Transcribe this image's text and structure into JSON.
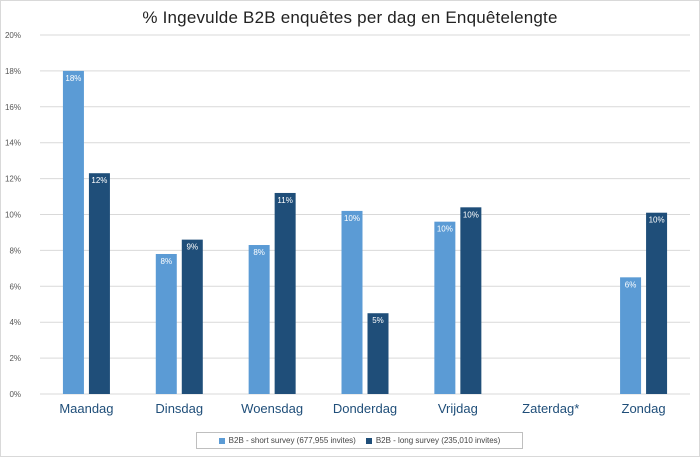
{
  "chart_data": {
    "type": "bar",
    "title": "% Ingevulde B2B enquêtes per dag en Enquêtelengte",
    "categories": [
      "Maandag",
      "Dinsdag",
      "Woensdag",
      "Donderdag",
      "Vrijdag",
      "Zaterdag*",
      "Zondag"
    ],
    "series": [
      {
        "name": "B2B - short survey (677,955 invites)",
        "color": "#5b9bd5",
        "values": [
          18.0,
          7.8,
          8.3,
          10.2,
          9.6,
          null,
          6.5
        ],
        "labels": [
          "18%",
          "8%",
          "8%",
          "10%",
          "10%",
          "",
          "6%"
        ]
      },
      {
        "name": "B2B - long survey (235,010 invites)",
        "color": "#1f4e79",
        "values": [
          12.3,
          8.6,
          11.2,
          4.5,
          10.4,
          null,
          10.1
        ],
        "labels": [
          "12%",
          "9%",
          "11%",
          "5%",
          "10%",
          "",
          "10%"
        ]
      }
    ],
    "ylim": [
      0,
      20
    ],
    "yticks": [
      "0%",
      "2%",
      "4%",
      "6%",
      "8%",
      "10%",
      "12%",
      "14%",
      "16%",
      "18%",
      "20%"
    ],
    "grid": true,
    "legend": "bottom"
  }
}
